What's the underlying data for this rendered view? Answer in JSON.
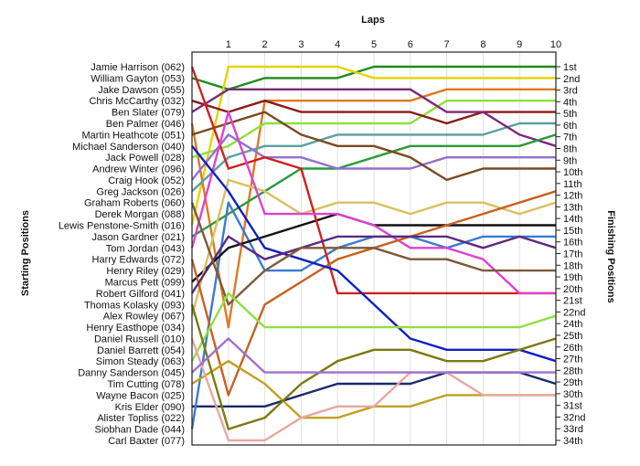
{
  "chart_data": {
    "type": "line",
    "title": "",
    "xlabel": "Laps",
    "ylabel": "Starting Positions",
    "y2label": "Finishing Positions",
    "x": [
      0,
      1,
      2,
      3,
      4,
      5,
      6,
      7,
      8,
      9,
      10
    ],
    "xlim": [
      0,
      10
    ],
    "ylim": [
      1,
      34
    ],
    "y_reversed": true,
    "grid": "vertical",
    "lap_labels": [
      "1",
      "2",
      "3",
      "4",
      "5",
      "6",
      "7",
      "8",
      "9",
      "10"
    ],
    "starting_labels": [
      "Jamie Harrison (062)",
      "William Gayton (053)",
      "Jake Dawson (055)",
      "Chris McCarthy (032)",
      "Ben Slater (079)",
      "Ben Palmer (046)",
      "Martin Heathcote (051)",
      "Michael Sanderson (040)",
      "Jack Powell (028)",
      "Andrew Winter (096)",
      "Craig Hook (052)",
      "Greg Jackson (026)",
      "Graham Roberts (060)",
      "Derek Morgan (088)",
      "Lewis Penstone-Smith (016)",
      "Jason Gardner (021)",
      "Tom Jordan (043)",
      "Harry Edwards (072)",
      "Henry Riley (029)",
      "Marcus Pett (099)",
      "Robert Gilford (041)",
      "Thomas Kolasky (093)",
      "Alex Rowley (067)",
      "Henry Easthope (034)",
      "Daniel Russell (010)",
      "Daniel Barrett (054)",
      "Simon Steady (063)",
      "Danny Sanderson (045)",
      "Tim Cutting (078)",
      "Wayne Bacon (025)",
      "Kris Elder (090)",
      "Alister Topliss (022)",
      "Siobhan Dade (044)",
      "Carl Baxter (077)"
    ],
    "finishing_labels": [
      "1st",
      "2nd",
      "3rd",
      "4th",
      "5th",
      "6th",
      "7th",
      "8th",
      "9th",
      "10th",
      "11th",
      "12th",
      "13th",
      "14th",
      "15th",
      "16th",
      "17th",
      "18th",
      "19th",
      "20th",
      "21st",
      "22nd",
      "24th",
      "25th",
      "26th",
      "27th",
      "28th",
      "29th",
      "30th",
      "31st",
      "32nd",
      "33rd",
      "34th"
    ],
    "series": [
      {
        "color": "#1f8a1f",
        "values": [
          2,
          3,
          2,
          2,
          2,
          1,
          1,
          1,
          1,
          1,
          1
        ]
      },
      {
        "color": "#e6d400",
        "values": [
          15,
          1,
          1,
          1,
          1,
          2,
          2,
          2,
          2,
          2,
          2
        ]
      },
      {
        "color": "#de7a20",
        "values": [
          6,
          24,
          4,
          4,
          4,
          4,
          4,
          3,
          3,
          3,
          3
        ]
      },
      {
        "color": "#8ee03a",
        "values": [
          9,
          8,
          6,
          6,
          6,
          6,
          6,
          4,
          4,
          4,
          4
        ]
      },
      {
        "color": "#8a1a1a",
        "values": [
          4,
          5,
          4,
          5,
          5,
          5,
          5,
          6,
          5,
          5,
          5
        ]
      },
      {
        "color": "#5aa0a0",
        "values": [
          12,
          9,
          8,
          8,
          7,
          7,
          7,
          7,
          7,
          6,
          6
        ]
      },
      {
        "color": "#7a2a7a",
        "values": [
          5,
          3,
          3,
          3,
          3,
          3,
          3,
          5,
          5,
          7,
          8
        ]
      },
      {
        "color": "#2a9a3a",
        "values": [
          16,
          14,
          12,
          10,
          10,
          9,
          8,
          8,
          8,
          8,
          7
        ]
      },
      {
        "color": "#9370cf",
        "values": [
          11,
          7,
          9,
          9,
          10,
          10,
          10,
          9,
          9,
          9,
          9
        ]
      },
      {
        "color": "#7a4a20",
        "values": [
          7,
          6,
          5,
          7,
          8,
          8,
          9,
          11,
          10,
          10,
          10
        ]
      },
      {
        "color": "#1a2a6a",
        "values": [
          31,
          31,
          31,
          30,
          29,
          29,
          29,
          28,
          28,
          28,
          29
        ]
      },
      {
        "color": "#3a7ad0",
        "values": [
          33,
          13,
          19,
          19,
          17,
          16,
          16,
          17,
          16,
          16,
          16
        ]
      },
      {
        "color": "#111111",
        "values": [
          20,
          17,
          16,
          15,
          14,
          15,
          15,
          15,
          15,
          15,
          15
        ]
      },
      {
        "color": "#d8c060",
        "values": [
          23,
          11,
          12,
          14,
          13,
          13,
          14,
          13,
          13,
          14,
          13
        ]
      },
      {
        "color": "#d02020",
        "values": [
          1,
          10,
          9,
          10,
          21,
          21,
          21,
          21,
          21,
          21,
          21
        ]
      },
      {
        "color": "#e040d0",
        "values": [
          17,
          5,
          14,
          14,
          14,
          15,
          17,
          17,
          18,
          21,
          21
        ]
      },
      {
        "color": "#c86020",
        "values": [
          18,
          30,
          22,
          20,
          18,
          17,
          16,
          15,
          14,
          13,
          12
        ]
      },
      {
        "color": "#1020c0",
        "values": [
          8,
          12,
          17,
          18,
          19,
          22,
          25,
          26,
          26,
          26,
          27
        ]
      },
      {
        "color": "#5b2a80",
        "values": [
          21,
          16,
          18,
          17,
          16,
          16,
          16,
          16,
          17,
          16,
          17
        ]
      },
      {
        "color": "#7a5a3a",
        "values": [
          13,
          22,
          19,
          17,
          17,
          17,
          18,
          18,
          19,
          19,
          19
        ]
      },
      {
        "color": "#90e040",
        "values": [
          27,
          21,
          24,
          24,
          24,
          24,
          24,
          24,
          24,
          24,
          23
        ]
      },
      {
        "color": "#c0a020",
        "values": [
          29,
          27,
          29,
          32,
          32,
          31,
          31,
          30,
          30,
          30,
          30
        ]
      },
      {
        "color": "#e8a8a0",
        "values": [
          25,
          34,
          34,
          32,
          31,
          31,
          28,
          28,
          30,
          30,
          30
        ]
      },
      {
        "color": "#7a7a10",
        "values": [
          22,
          33,
          32,
          29,
          27,
          26,
          26,
          27,
          27,
          26,
          25
        ]
      },
      {
        "color": "#a070d0",
        "values": [
          28,
          25,
          28,
          28,
          28,
          28,
          28,
          28,
          28,
          28,
          28
        ]
      }
    ]
  }
}
